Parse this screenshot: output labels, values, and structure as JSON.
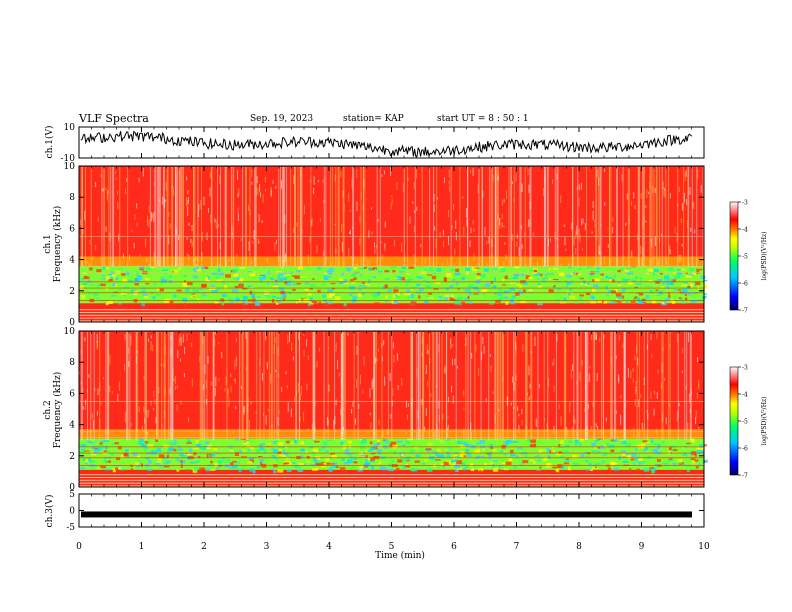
{
  "header": {
    "title": "VLF Spectra",
    "date": "Sep. 19, 2023",
    "station": "station= KAP",
    "start": "start  UT  =   8  : 50 : 1"
  },
  "chart_data": [
    {
      "type": "line",
      "title": "",
      "ylabel": "ch.1(V)",
      "ylim": [
        -10,
        10
      ],
      "yticks": [
        "10",
        "-10"
      ],
      "series": [
        {
          "name": "",
          "values": []
        }
      ]
    },
    {
      "type": "heatmap",
      "ylabel": "ch.1\nFrequency  (kHz)",
      "ylabel_lines": [
        "ch.1",
        "Frequency  (kHz)"
      ],
      "ylim": [
        0,
        10
      ],
      "yticks": [
        "0",
        "2",
        "4",
        "6",
        "8",
        "10"
      ],
      "colorbar": {
        "label": "log(PSD)(V²/Hz)",
        "ticks": [
          "-3",
          "-4",
          "-5",
          "-6",
          "-7"
        ],
        "range": [
          -7,
          -3
        ]
      }
    },
    {
      "type": "heatmap",
      "ylabel": "ch.2\nFrequency  (kHz)",
      "ylabel_lines": [
        "ch.2",
        "Frequency  (kHz)"
      ],
      "ylim": [
        0,
        10
      ],
      "yticks": [
        "0",
        "2",
        "4",
        "6",
        "8",
        "10"
      ],
      "colorbar": {
        "label": "log(PSD)(V²/Hz)",
        "ticks": [
          "-3",
          "-4",
          "-5",
          "-6",
          "-7"
        ],
        "range": [
          -7,
          -3
        ]
      }
    },
    {
      "type": "line",
      "ylabel": "ch.3(V)",
      "ylim": [
        -5,
        5
      ],
      "yticks": [
        "5",
        "0",
        "-5"
      ],
      "series": [
        {
          "name": "",
          "values": [
            -1.2,
            -1.2
          ]
        }
      ]
    }
  ],
  "xaxis": {
    "label": "Time  (min)",
    "range": [
      0,
      10
    ],
    "ticks": [
      "0",
      "1",
      "2",
      "3",
      "4",
      "5",
      "6",
      "7",
      "8",
      "9",
      "10"
    ]
  },
  "colors": {
    "background": "#ff2020",
    "colormap": [
      "#000080",
      "#0000ff",
      "#00c0ff",
      "#00ff80",
      "#80ff00",
      "#ffff00",
      "#ff8000",
      "#ff0000",
      "#ffffff"
    ]
  }
}
